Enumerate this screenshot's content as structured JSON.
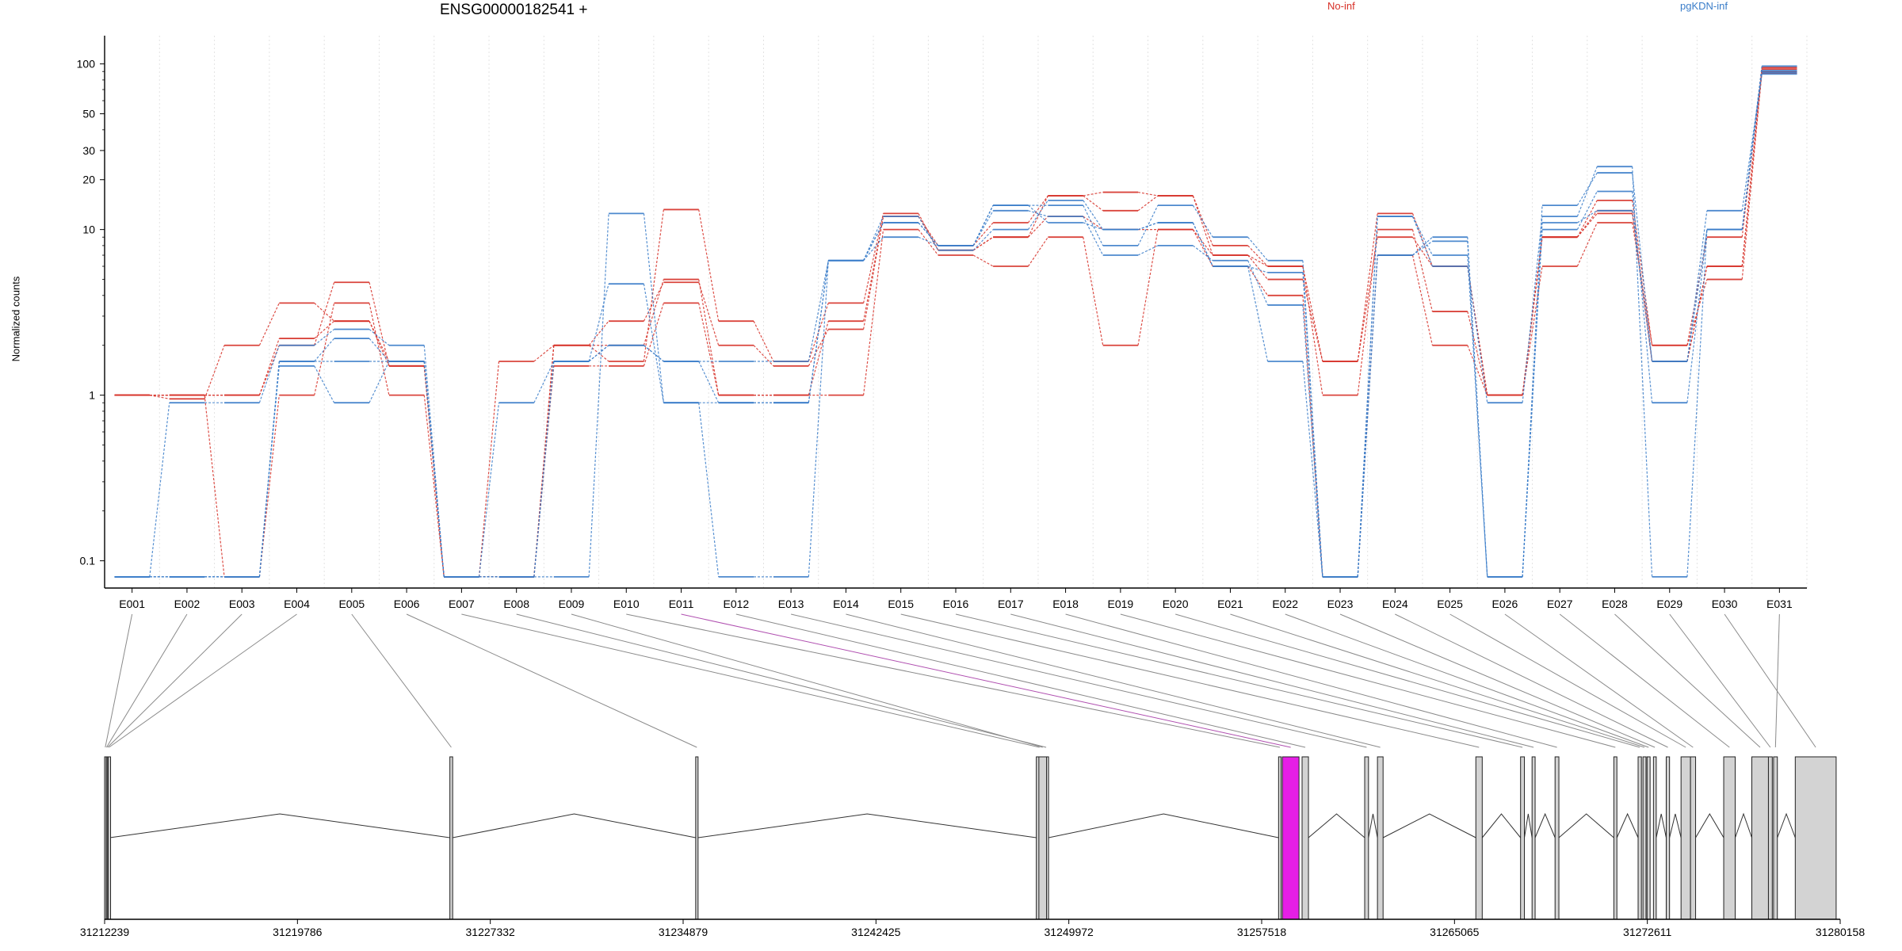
{
  "chart_data": {
    "type": "line",
    "title": "ENSG00000182541 +",
    "ylabel": "Normalized counts",
    "y_scale": "log",
    "ylim": [
      0.07,
      110
    ],
    "y_ticks": [
      {
        "value": 0.1,
        "label": "0.1"
      },
      {
        "value": 1,
        "label": "1"
      },
      {
        "value": 10,
        "label": "10"
      },
      {
        "value": 20,
        "label": "20"
      },
      {
        "value": 30,
        "label": "30"
      },
      {
        "value": 50,
        "label": "50"
      },
      {
        "value": 100,
        "label": "100"
      }
    ],
    "grid": "vertical dotted",
    "legend": [
      {
        "label": "No-inf",
        "color": "#d73027"
      },
      {
        "label": "pgKDN-inf",
        "color": "#3a7dc9"
      }
    ],
    "categories": [
      "E001",
      "E002",
      "E003",
      "E004",
      "E005",
      "E006",
      "E007",
      "E008",
      "E009",
      "E010",
      "E011",
      "E012",
      "E013",
      "E014",
      "E015",
      "E016",
      "E017",
      "E018",
      "E019",
      "E020",
      "E021",
      "E022",
      "E023",
      "E024",
      "E025",
      "E026",
      "E027",
      "E028",
      "E029",
      "E030",
      "E031"
    ],
    "series": [
      {
        "group": "No-inf",
        "color": "#d73027",
        "values": [
          1.0,
          1.0,
          0.08,
          1.0,
          3.6,
          1.0,
          0.08,
          0.08,
          1.5,
          1.5,
          3.6,
          1.0,
          1.0,
          1.0,
          10,
          7,
          6,
          9,
          2,
          10,
          6,
          4,
          0.08,
          7,
          2,
          1.0,
          6,
          11,
          2,
          5,
          88
        ]
      },
      {
        "group": "No-inf",
        "color": "#d73027",
        "values": [
          1.0,
          1.0,
          1.0,
          2.0,
          4.8,
          1.5,
          0.08,
          0.08,
          2.0,
          2.8,
          4.8,
          2.0,
          1.5,
          2.5,
          12,
          8,
          11,
          16,
          13,
          16,
          8,
          6,
          1.0,
          10,
          3.2,
          1.0,
          9,
          15,
          2.0,
          9,
          93
        ]
      },
      {
        "group": "No-inf",
        "color": "#d73027",
        "values": [
          1.0,
          0.95,
          2.0,
          3.6,
          2.8,
          1.6,
          0.08,
          1.6,
          2.0,
          1.6,
          13.2,
          2.8,
          1.6,
          3.6,
          12.5,
          7.5,
          9,
          16,
          16.8,
          16,
          7,
          6,
          1.6,
          12.5,
          6,
          1.0,
          9,
          12.5,
          1.6,
          6,
          90
        ]
      },
      {
        "group": "No-inf",
        "color": "#d73027",
        "values": [
          1.0,
          1.0,
          1.0,
          2.2,
          2.8,
          1.5,
          0.08,
          0.08,
          2.0,
          2.0,
          5.0,
          1.0,
          1.0,
          2.8,
          12,
          7.5,
          9,
          12,
          10,
          10,
          7,
          5,
          1.6,
          9,
          6,
          1.0,
          9,
          13,
          1.6,
          6,
          95
        ]
      },
      {
        "group": "pgKDN-inf",
        "color": "#3a7dc9",
        "values": [
          0.08,
          0.08,
          0.08,
          1.6,
          1.6,
          1.6,
          0.08,
          0.08,
          0.08,
          12.5,
          0.9,
          0.08,
          0.08,
          6.5,
          11,
          8,
          14,
          14,
          8,
          14,
          9,
          6.5,
          0.08,
          7,
          9,
          0.08,
          14,
          22,
          1.6,
          13,
          87
        ]
      },
      {
        "group": "pgKDN-inf",
        "color": "#3a7dc9",
        "values": [
          0.08,
          0.9,
          0.9,
          2.0,
          2.5,
          2.0,
          0.08,
          0.9,
          1.6,
          2.0,
          1.6,
          0.9,
          0.9,
          6.5,
          11,
          8,
          14,
          11,
          10,
          11,
          6,
          1.6,
          0.08,
          12,
          6,
          0.9,
          12,
          24,
          0.08,
          10,
          89
        ]
      },
      {
        "group": "pgKDN-inf",
        "color": "#3a7dc9",
        "values": [
          0.08,
          0.08,
          0.08,
          1.5,
          0.9,
          1.6,
          0.08,
          0.08,
          1.6,
          4.7,
          0.9,
          0.9,
          0.9,
          6.5,
          9,
          8,
          13,
          12,
          7,
          8,
          6.5,
          3.5,
          0.08,
          7,
          8.5,
          0.08,
          10,
          17,
          0.9,
          10,
          91
        ]
      },
      {
        "group": "pgKDN-inf",
        "color": "#3a7dc9",
        "values": [
          0.08,
          0.08,
          0.08,
          1.6,
          2.2,
          1.6,
          0.08,
          0.08,
          1.6,
          2.0,
          1.6,
          1.6,
          1.6,
          6.5,
          12,
          7.5,
          10,
          15,
          10,
          11,
          6,
          5.5,
          0.08,
          12,
          7,
          0.08,
          11,
          13,
          1.6,
          10,
          97
        ]
      }
    ],
    "gene_axis": {
      "tick_labels": [
        "31212239",
        "31219786",
        "31227332",
        "31234879",
        "31242425",
        "31249972",
        "31257518",
        "31265065",
        "31272611",
        "31280158"
      ],
      "range": [
        31212239,
        31280158
      ],
      "highlighted_exon": "E011",
      "highlight_color": "#e61ee6"
    }
  }
}
